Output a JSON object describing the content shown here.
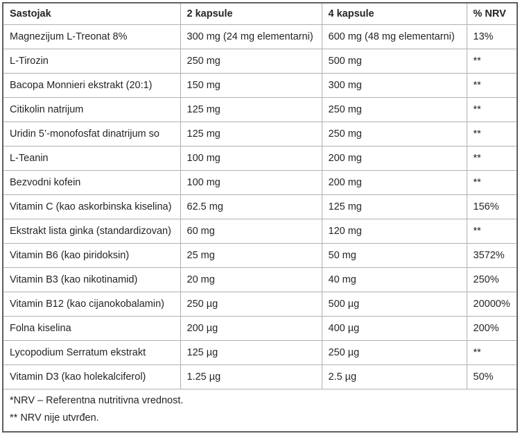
{
  "table": {
    "headers": [
      "Sastojak",
      "2 kapsule",
      "4 kapsule",
      "% NRV"
    ],
    "rows": [
      [
        "Magnezijum L-Treonat 8%",
        "300 mg (24 mg elementarni)",
        "600 mg (48 mg elementarni)",
        "13%"
      ],
      [
        "L-Tirozin",
        "250 mg",
        "500 mg",
        "**"
      ],
      [
        "Bacopa Monnieri ekstrakt (20:1)",
        "150 mg",
        "300 mg",
        "**"
      ],
      [
        "Citikolin natrijum",
        "125 mg",
        "250 mg",
        "**"
      ],
      [
        "Uridin 5’-monofosfat dinatrijum so",
        "125 mg",
        "250 mg",
        "**"
      ],
      [
        "L-Teanin",
        "100 mg",
        "200 mg",
        "**"
      ],
      [
        "Bezvodni kofein",
        "100 mg",
        "200 mg",
        "**"
      ],
      [
        "Vitamin C (kao askorbinska kiselina)",
        "62.5 mg",
        "125 mg",
        "156%"
      ],
      [
        "Ekstrakt lista ginka (standardizovan)",
        "60 mg",
        "120 mg",
        "**"
      ],
      [
        "Vitamin B6 (kao piridoksin)",
        "25 mg",
        "50 mg",
        "3572%"
      ],
      [
        "Vitamin B3 (kao nikotinamid)",
        "20 mg",
        "40 mg",
        "250%"
      ],
      [
        "Vitamin B12 (kao cijanokobalamin)",
        "250 µg",
        "500 µg",
        "20000%"
      ],
      [
        "Folna kiselina",
        "200 µg",
        "400 µg",
        "200%"
      ],
      [
        "Lycopodium Serratum ekstrakt",
        "125 µg",
        "250 µg",
        "**"
      ],
      [
        "Vitamin D3 (kao holekalciferol)",
        "1.25 µg",
        "2.5 µg",
        "50%"
      ]
    ],
    "footnotes": [
      "*NRV – Referentna nutritivna vrednost.",
      "** NRV nije utvrđen."
    ]
  },
  "colors": {
    "text": "#212529",
    "outer_border": "#5f5f5f",
    "inner_border": "#b0b0b0",
    "background": "#ffffff"
  }
}
